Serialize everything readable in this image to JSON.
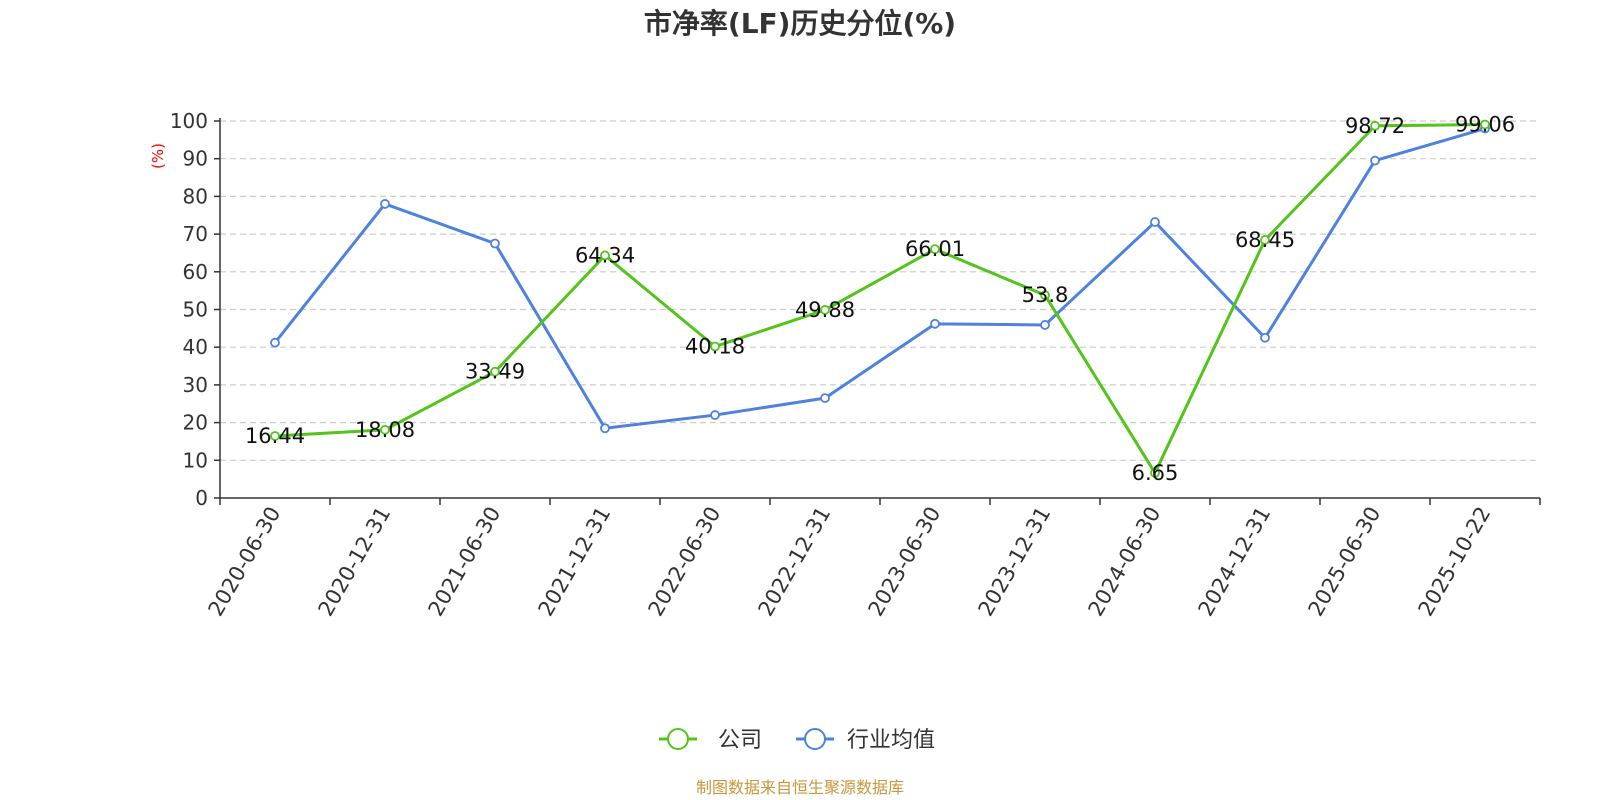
{
  "chart_data": {
    "type": "line",
    "title": "市净率(LF)历史分位(%)",
    "ylabel": "(%)",
    "xlabel": "",
    "ylim": [
      0,
      100
    ],
    "yticks": [
      0,
      10,
      20,
      30,
      40,
      50,
      60,
      70,
      80,
      90,
      100
    ],
    "grid": true,
    "legend_position": "bottom",
    "categories": [
      "2020-06-30",
      "2020-12-31",
      "2021-06-30",
      "2021-12-31",
      "2022-06-30",
      "2022-12-31",
      "2023-06-30",
      "2023-12-31",
      "2024-06-30",
      "2024-12-31",
      "2025-06-30",
      "2025-10-22"
    ],
    "series": [
      {
        "name": "公司",
        "color": "#52c41a",
        "values": [
          16.44,
          18.08,
          33.49,
          64.34,
          40.18,
          49.88,
          66.01,
          53.8,
          6.65,
          68.45,
          98.72,
          99.06
        ],
        "labels": [
          "16.44",
          "18.08",
          "33.49",
          "64.34",
          "40.18",
          "49.88",
          "66.01",
          "53.8",
          "6.65",
          "68.45",
          "98.72",
          "99.06"
        ]
      },
      {
        "name": "行业均值",
        "color": "#4e82de",
        "values": [
          41.2,
          78.0,
          67.5,
          18.5,
          22.0,
          26.5,
          46.2,
          45.9,
          73.2,
          42.5,
          89.5,
          98.0
        ]
      }
    ]
  },
  "source": "制图数据来自恒生聚源数据库"
}
